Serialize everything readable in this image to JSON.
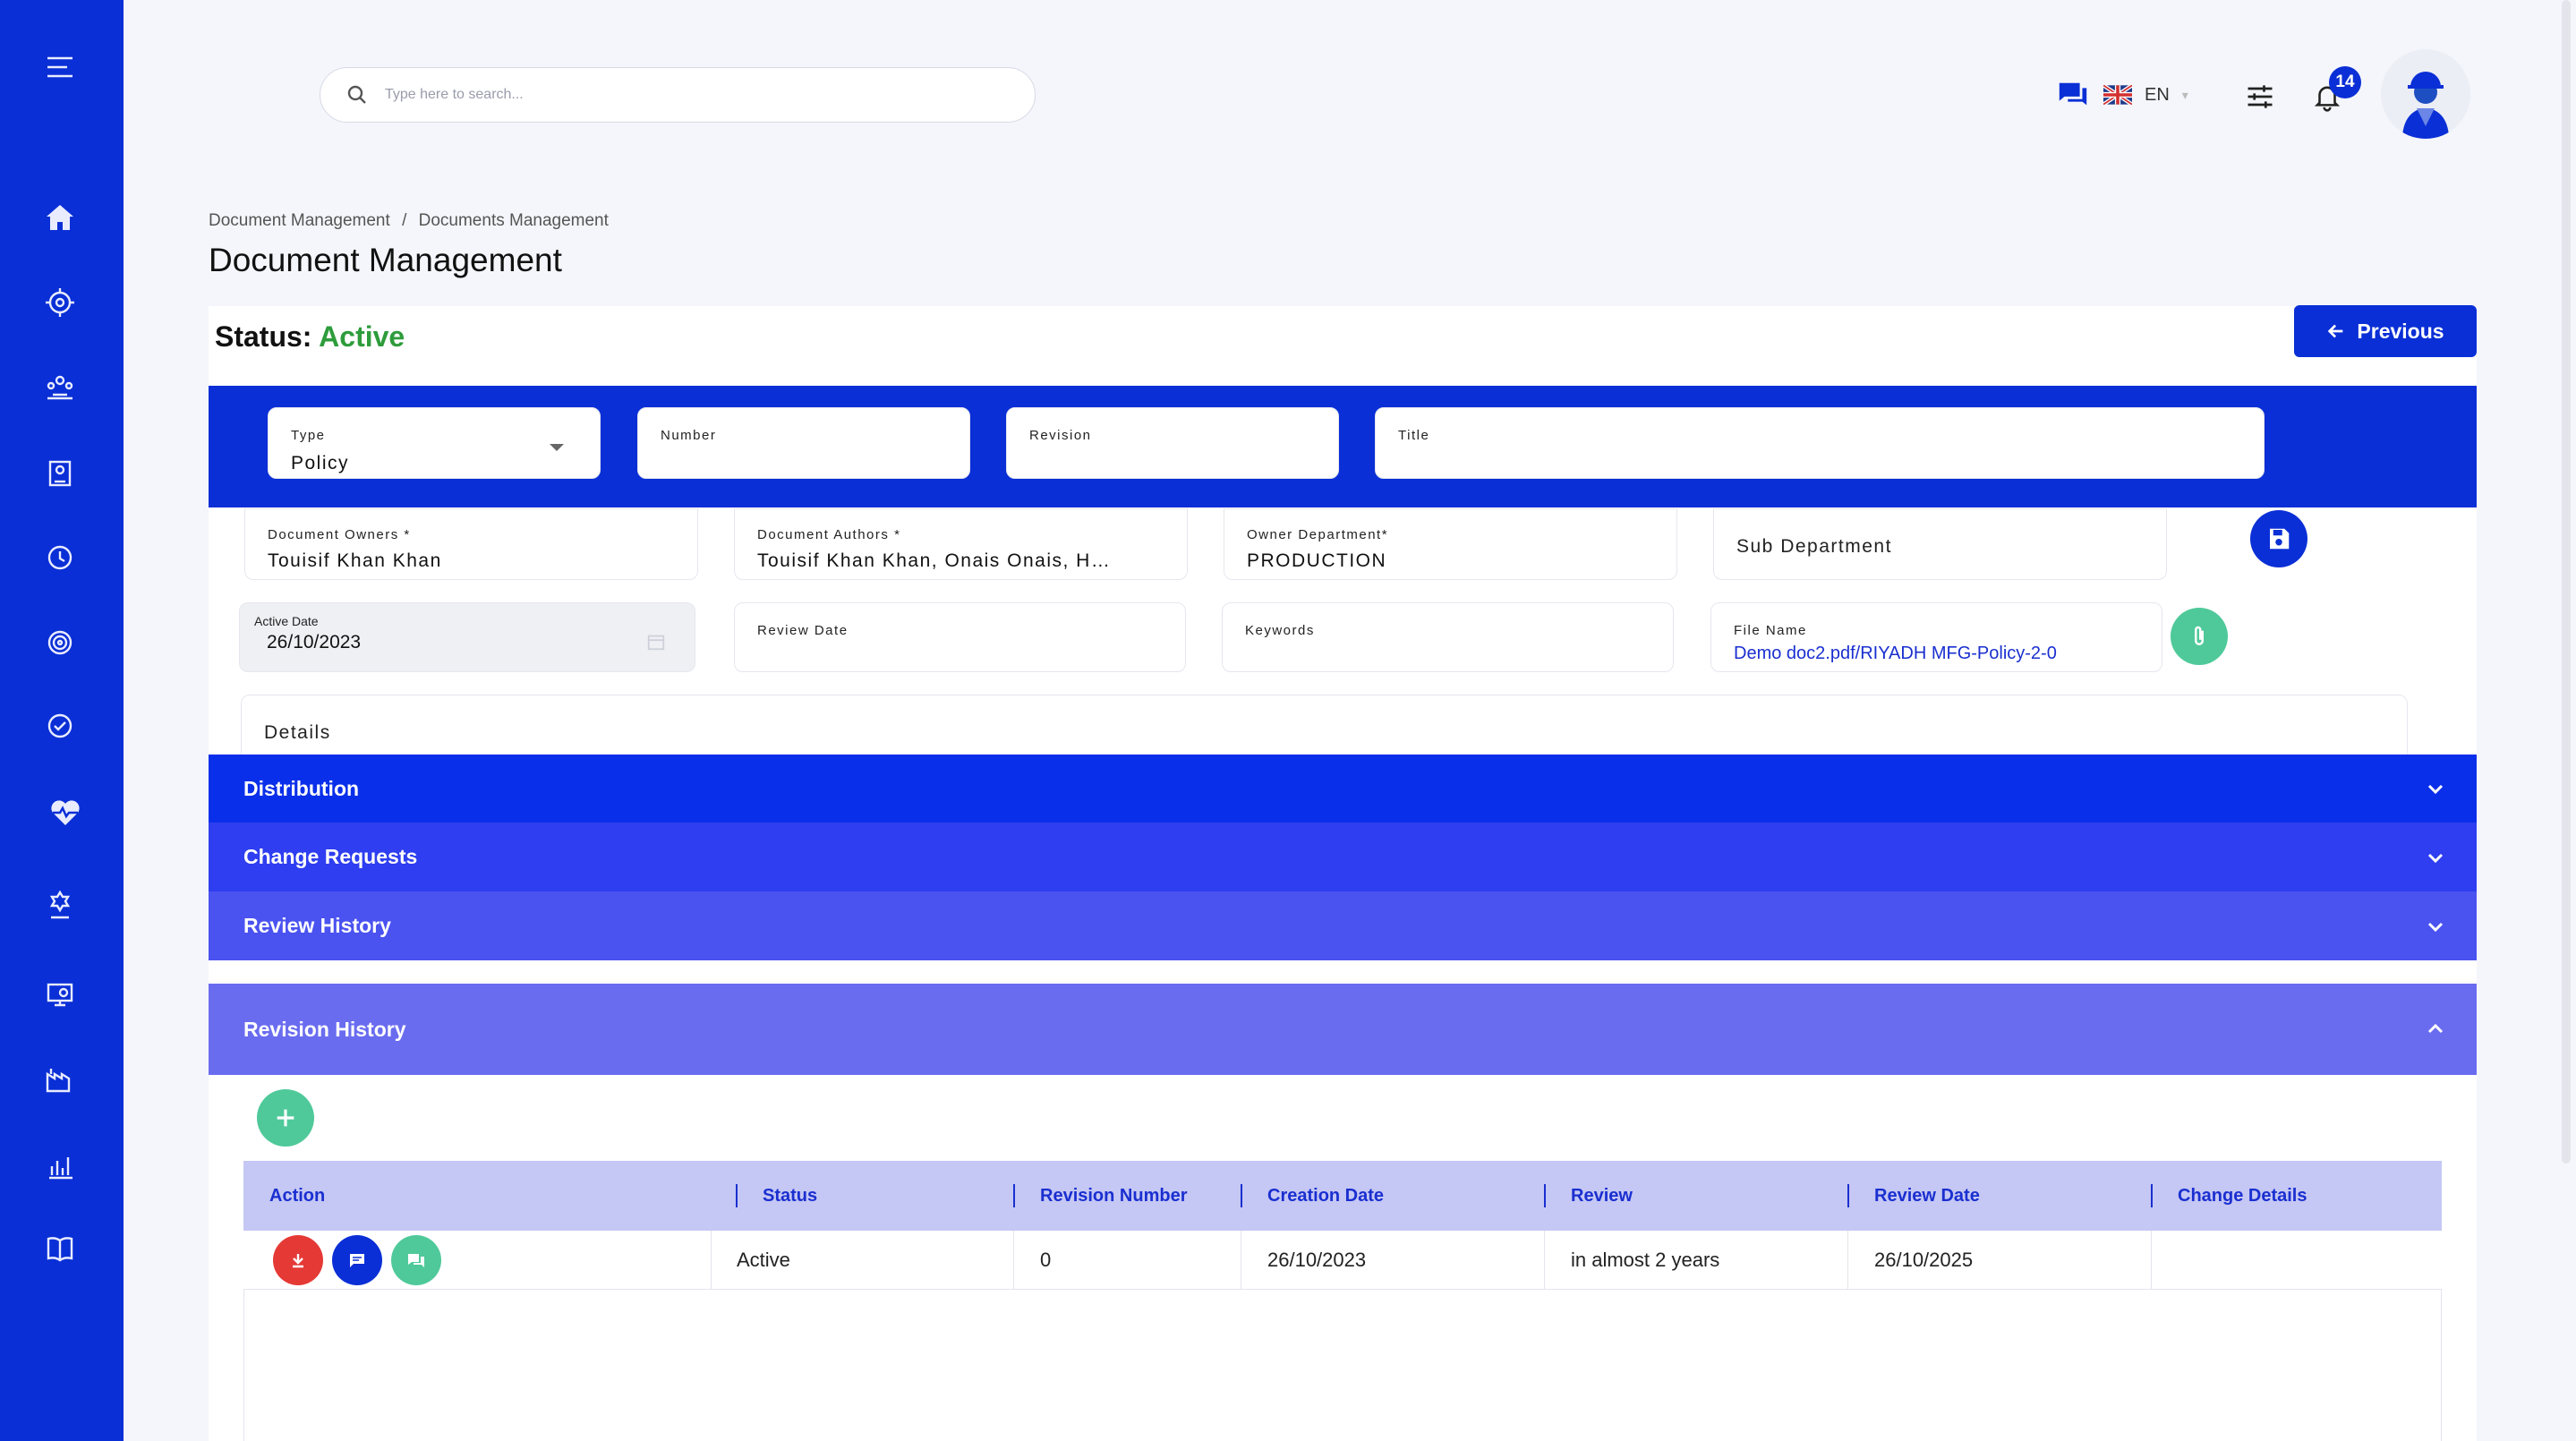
{
  "search": {
    "placeholder": "Type here to search..."
  },
  "topbar": {
    "language": "EN",
    "notification_count": "14"
  },
  "breadcrumb": {
    "items": [
      "Document Management",
      "Documents Management"
    ],
    "separator": "/"
  },
  "page": {
    "title": "Document Management"
  },
  "status": {
    "label": "Status:",
    "value": "Active",
    "color": "#2e9c3b"
  },
  "buttons": {
    "previous": "Previous"
  },
  "fields": {
    "type": {
      "label": "Type",
      "value": "Policy"
    },
    "number": {
      "label": "Number",
      "value": ""
    },
    "revision": {
      "label": "Revision",
      "value": ""
    },
    "title": {
      "label": "Title",
      "value": ""
    },
    "document_owners": {
      "label": "Document Owners *",
      "value": "Touisif Khan Khan"
    },
    "document_authors": {
      "label": "Document Authors *",
      "value": "Touisif Khan Khan, Onais Onais, H…"
    },
    "owner_department": {
      "label": "Owner Department*",
      "value": "PRODUCTION"
    },
    "sub_department": {
      "label": "Sub Department",
      "value": ""
    },
    "active_date": {
      "label": "Active Date",
      "value": "26/10/2023"
    },
    "review_date": {
      "label": "Review Date",
      "value": ""
    },
    "keywords": {
      "label": "Keywords",
      "value": ""
    },
    "file_name": {
      "label": "File Name",
      "value": "Demo doc2.pdf/RIYADH MFG-Policy-2-0"
    },
    "details": {
      "label": "Details",
      "value": ""
    }
  },
  "accordions": {
    "distribution": "Distribution",
    "change_requests": "Change Requests",
    "review_history": "Review History",
    "revision_history": "Revision History"
  },
  "revision_table": {
    "columns": [
      "Action",
      "Status",
      "Revision Number",
      "Creation Date",
      "Review",
      "Review Date",
      "Change Details"
    ],
    "rows": [
      {
        "status": "Active",
        "revision_number": "0",
        "creation_date": "26/10/2023",
        "review": "in almost 2 years",
        "review_date": "26/10/2025",
        "change_details": ""
      }
    ]
  },
  "colors": {
    "brand": "#0a2fd6",
    "accent_green": "#4fc99a",
    "danger": "#e53935"
  }
}
